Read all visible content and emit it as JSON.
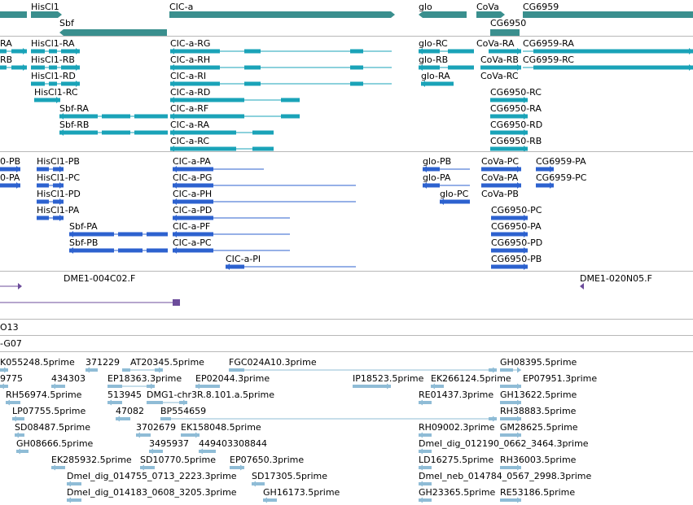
{
  "colors": {
    "gene": "#3a8f8e",
    "mrna": "#1aa3b8",
    "protein": "#2d62cf",
    "clone": "#6c4c9b",
    "track_line": "#6f5fa0",
    "est": "#8fbcd6"
  },
  "gene_track": [
    {
      "label": "HisCl1",
      "arrow": "right"
    },
    {
      "label": "Sbf",
      "arrow": "left"
    },
    {
      "label": "CIC-a",
      "arrow": "right"
    },
    {
      "label": "glo",
      "arrow": "left"
    },
    {
      "label": "CoVa",
      "arrow": "right"
    },
    {
      "label": "CG6959",
      "arrow": "right"
    },
    {
      "label": "CG6950",
      "arrow": "right"
    }
  ],
  "mrna_track": [
    {
      "label": "RA"
    },
    {
      "label": "RB"
    },
    {
      "label": "HisCl1-RA"
    },
    {
      "label": "HisCl1-RB"
    },
    {
      "label": "HisCl1-RD"
    },
    {
      "label": "HisCl1-RC"
    },
    {
      "label": "Sbf-RA"
    },
    {
      "label": "Sbf-RB"
    },
    {
      "label": "CIC-a-RG"
    },
    {
      "label": "CIC-a-RH"
    },
    {
      "label": "CIC-a-RI"
    },
    {
      "label": "CIC-a-RD"
    },
    {
      "label": "CIC-a-RF"
    },
    {
      "label": "CIC-a-RA"
    },
    {
      "label": "CIC-a-RC"
    },
    {
      "label": "glo-RC"
    },
    {
      "label": "glo-RB"
    },
    {
      "label": "glo-RA"
    },
    {
      "label": "CoVa-RA"
    },
    {
      "label": "CoVa-RB"
    },
    {
      "label": "CoVa-RC"
    },
    {
      "label": "CG6959-RA"
    },
    {
      "label": "CG6959-RC"
    },
    {
      "label": "CG6950-RC"
    },
    {
      "label": "CG6950-RA"
    },
    {
      "label": "CG6950-RD"
    },
    {
      "label": "CG6950-RB"
    }
  ],
  "protein_track": [
    {
      "label": "0-PB"
    },
    {
      "label": "0-PA"
    },
    {
      "label": "HisCl1-PB"
    },
    {
      "label": "HisCl1-PC"
    },
    {
      "label": "HisCl1-PD"
    },
    {
      "label": "HisCl1-PA"
    },
    {
      "label": "Sbf-PA"
    },
    {
      "label": "Sbf-PB"
    },
    {
      "label": "CIC-a-PA"
    },
    {
      "label": "CIC-a-PG"
    },
    {
      "label": "CIC-a-PH"
    },
    {
      "label": "CIC-a-PD"
    },
    {
      "label": "CIC-a-PF"
    },
    {
      "label": "CIC-a-PC"
    },
    {
      "label": "CIC-a-PI"
    },
    {
      "label": "glo-PB"
    },
    {
      "label": "glo-PA"
    },
    {
      "label": "glo-PC"
    },
    {
      "label": "CoVa-PC"
    },
    {
      "label": "CoVa-PA"
    },
    {
      "label": "CoVa-PB"
    },
    {
      "label": "CG6959-PA"
    },
    {
      "label": "CG6959-PC"
    },
    {
      "label": "CG6950-PC"
    },
    {
      "label": "CG6950-PA"
    },
    {
      "label": "CG6950-PD"
    },
    {
      "label": "CG6950-PB"
    }
  ],
  "clone_track": [
    {
      "label": "DME1-004C02.F"
    },
    {
      "label": "DME1-020N05.F"
    }
  ],
  "single_tracks": [
    {
      "label": "O13"
    },
    {
      "label": "-G07"
    }
  ],
  "est_track": [
    {
      "label": "K055248.5prime"
    },
    {
      "label": "371229"
    },
    {
      "label": "AT20345.5prime"
    },
    {
      "label": "FGC024A10.3prime"
    },
    {
      "label": "GH08395.5prime"
    },
    {
      "label": "9775"
    },
    {
      "label": "434303"
    },
    {
      "label": "EP18363.3prime"
    },
    {
      "label": "EP02044.3prime"
    },
    {
      "label": "IP18523.5prime"
    },
    {
      "label": "EK266124.5prime"
    },
    {
      "label": "EP07951.3prime"
    },
    {
      "label": "RH56974.5prime"
    },
    {
      "label": "513945"
    },
    {
      "label": "DMG1-chr3R.8.101.a.5prime"
    },
    {
      "label": "RE01437.3prime"
    },
    {
      "label": "GH13622.5prime"
    },
    {
      "label": "LP07755.5prime"
    },
    {
      "label": "47082"
    },
    {
      "label": "BP554659"
    },
    {
      "label": "RH38883.5prime"
    },
    {
      "label": "SD08487.5prime"
    },
    {
      "label": "3702679"
    },
    {
      "label": "EK158048.5prime"
    },
    {
      "label": "RH09002.3prime"
    },
    {
      "label": "GM28625.5prime"
    },
    {
      "label": "GH08666.5prime"
    },
    {
      "label": "3495937"
    },
    {
      "label": "449403308844"
    },
    {
      "label": "Dmel_dig_012190_0662_3464.3prime"
    },
    {
      "label": "EK285932.5prime"
    },
    {
      "label": "SD10770.5prime"
    },
    {
      "label": "EP07650.3prime"
    },
    {
      "label": "LD16275.5prime"
    },
    {
      "label": "RH36003.5prime"
    },
    {
      "label": "Dmel_dig_014755_0713_2223.3prime"
    },
    {
      "label": "SD17305.5prime"
    },
    {
      "label": "Dmel_neb_014784_0567_2998.3prime"
    },
    {
      "label": "Dmel_dig_014183_0608_3205.3prime"
    },
    {
      "label": "GH16173.5prime"
    },
    {
      "label": "GH23365.5prime"
    },
    {
      "label": "RE53186.5prime"
    }
  ]
}
